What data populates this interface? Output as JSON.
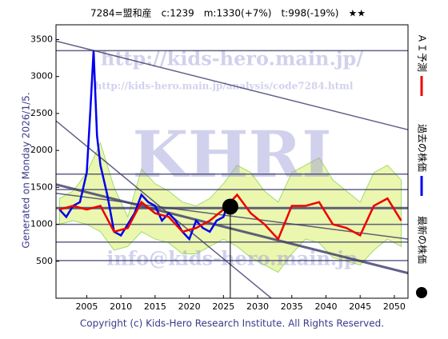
{
  "chart_data": {
    "type": "line",
    "title": "7284=盟和産　c:1239　m:1330(+7%)　t:998(-19%)　★★",
    "side_label": "Generated on Monday 2026/1/5.",
    "footer": "Copyright (c) Kids-Hero Research Institute. All Rights Reserved.",
    "watermarks": [
      "http://kids-hero.main.jp/",
      "http://kids-hero.main.jp/analysis/code7284.html",
      "KHRI",
      "info@kids-hero.main.jp"
    ],
    "xlim": [
      2000.5,
      2052
    ],
    "ylim": [
      0,
      3700
    ],
    "xticks": [
      2005,
      2010,
      2015,
      2020,
      2025,
      2030,
      2035,
      2040,
      2045,
      2050
    ],
    "yticks": [
      500,
      1000,
      1500,
      2000,
      2500,
      3000,
      3500
    ],
    "band": {
      "color": "#7ccf3c",
      "fill": "#e8f5a0",
      "x": [
        2001,
        2003,
        2005,
        2007,
        2009,
        2011,
        2013,
        2015,
        2017,
        2019,
        2021,
        2023,
        2025,
        2027,
        2029,
        2031,
        2033,
        2035,
        2037,
        2039,
        2041,
        2043,
        2045,
        2047,
        2049,
        2051
      ],
      "upper": [
        1350,
        1450,
        1700,
        2100,
        1500,
        1100,
        1750,
        1550,
        1450,
        1300,
        1250,
        1350,
        1550,
        1800,
        1700,
        1450,
        1300,
        1700,
        1800,
        1900,
        1600,
        1450,
        1300,
        1700,
        1800,
        1600
      ],
      "lower": [
        1000,
        1050,
        1000,
        900,
        650,
        700,
        900,
        800,
        750,
        600,
        600,
        700,
        800,
        700,
        550,
        450,
        350,
        600,
        800,
        750,
        550,
        500,
        450,
        650,
        800,
        700
      ]
    },
    "series": [
      {
        "name": "過去の株価",
        "color": "#0000ee",
        "x": [
          2001,
          2002,
          2003,
          2004,
          2005,
          2005.5,
          2006,
          2006.5,
          2007,
          2008,
          2009,
          2010,
          2011,
          2012,
          2013,
          2014,
          2015,
          2016,
          2017,
          2018,
          2019,
          2020,
          2021,
          2022,
          2023,
          2024,
          2025,
          2025.5
        ],
        "values": [
          1200,
          1100,
          1250,
          1300,
          1700,
          2500,
          3350,
          2200,
          1800,
          1400,
          900,
          850,
          1000,
          1150,
          1400,
          1300,
          1250,
          1050,
          1150,
          1050,
          900,
          800,
          1050,
          950,
          900,
          1050,
          1100,
          1239
        ]
      },
      {
        "name": "ＡＩ予測",
        "color": "#ee0000",
        "x": [
          2001,
          2003,
          2005,
          2007,
          2009,
          2011,
          2013,
          2015,
          2017,
          2019,
          2021,
          2023,
          2025,
          2027,
          2029,
          2031,
          2033,
          2035,
          2037,
          2039,
          2041,
          2043,
          2045,
          2047,
          2049,
          2051
        ],
        "values": [
          1200,
          1250,
          1200,
          1250,
          900,
          950,
          1300,
          1150,
          1100,
          900,
          950,
          1050,
          1200,
          1400,
          1150,
          1000,
          800,
          1250,
          1250,
          1300,
          1000,
          950,
          850,
          1250,
          1350,
          1050
        ]
      }
    ],
    "latest": {
      "name": "最新の株価",
      "x": 2026,
      "value": 1239,
      "color": "#000000"
    },
    "hlines": [
      3350,
      1680,
      1470,
      1220,
      1000,
      760,
      510
    ],
    "ref_lines": [
      {
        "x": [
          2000.5,
          2052
        ],
        "y": [
          3480,
          2280
        ]
      },
      {
        "x": [
          2000.5,
          2052
        ],
        "y": [
          1540,
          340
        ]
      },
      {
        "x": [
          2000.5,
          2052
        ],
        "y": [
          1420,
          800
        ]
      },
      {
        "x": [
          2000.5,
          2032
        ],
        "y": [
          2400,
          0
        ]
      }
    ]
  }
}
